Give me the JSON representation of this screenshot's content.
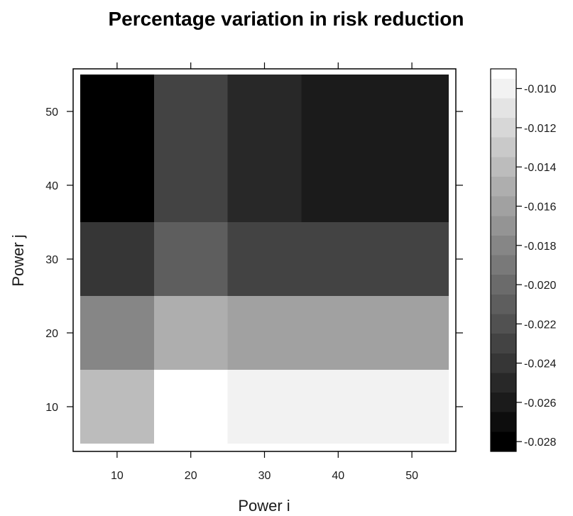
{
  "chart_data": {
    "type": "heatmap",
    "title": "Percentage variation in risk reduction",
    "xlabel": "Power i",
    "ylabel": "Power j",
    "x_ticks": [
      10,
      20,
      30,
      40,
      50
    ],
    "y_ticks": [
      10,
      20,
      30,
      40,
      50
    ],
    "xlim": [
      5,
      55
    ],
    "ylim": [
      5,
      55
    ],
    "cells": [
      {
        "x0": 5,
        "x1": 15,
        "y0": 5,
        "y1": 15,
        "value": -0.0138
      },
      {
        "x0": 15,
        "x1": 25,
        "y0": 5,
        "y1": 15,
        "value": -0.0093
      },
      {
        "x0": 25,
        "x1": 55,
        "y0": 5,
        "y1": 15,
        "value": -0.0103
      },
      {
        "x0": 5,
        "x1": 15,
        "y0": 15,
        "y1": 25,
        "value": -0.0183
      },
      {
        "x0": 15,
        "x1": 25,
        "y0": 15,
        "y1": 25,
        "value": -0.0148
      },
      {
        "x0": 25,
        "x1": 55,
        "y0": 15,
        "y1": 25,
        "value": -0.0163
      },
      {
        "x0": 5,
        "x1": 15,
        "y0": 25,
        "y1": 35,
        "value": -0.0238
      },
      {
        "x0": 15,
        "x1": 25,
        "y0": 25,
        "y1": 35,
        "value": -0.0213
      },
      {
        "x0": 25,
        "x1": 35,
        "y0": 25,
        "y1": 35,
        "value": -0.0228
      },
      {
        "x0": 35,
        "x1": 55,
        "y0": 25,
        "y1": 35,
        "value": -0.0233
      },
      {
        "x0": 5,
        "x1": 15,
        "y0": 35,
        "y1": 55,
        "value": -0.0278
      },
      {
        "x0": 15,
        "x1": 25,
        "y0": 35,
        "y1": 55,
        "value": -0.0228
      },
      {
        "x0": 25,
        "x1": 35,
        "y0": 35,
        "y1": 55,
        "value": -0.0248
      },
      {
        "x0": 35,
        "x1": 55,
        "y0": 35,
        "y1": 55,
        "value": -0.0263
      }
    ],
    "colorbar": {
      "range": [
        -0.0285,
        -0.009
      ],
      "step": 0.001,
      "tick_values": [
        -0.01,
        -0.012,
        -0.014,
        -0.016,
        -0.018,
        -0.02,
        -0.022,
        -0.024,
        -0.026,
        -0.028
      ],
      "tick_labels": [
        "-0.010",
        "-0.012",
        "-0.014",
        "-0.016",
        "-0.018",
        "-0.020",
        "-0.022",
        "-0.024",
        "-0.026",
        "-0.028"
      ],
      "color_low": "#000000",
      "color_high": "#ffffff"
    },
    "grid": false
  }
}
